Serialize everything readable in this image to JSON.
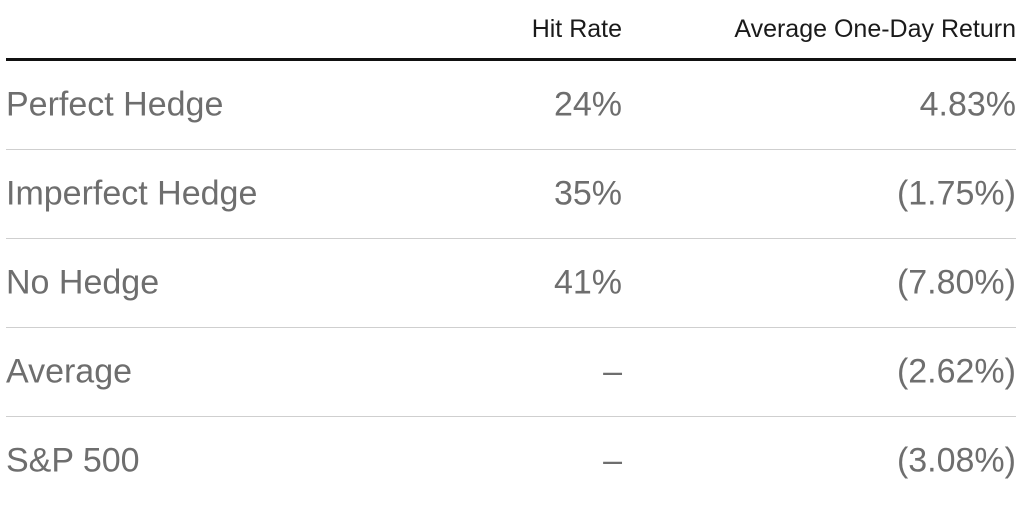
{
  "table": {
    "headers": {
      "hit_rate": "Hit Rate",
      "avg_return": "Average One-Day Return"
    },
    "rows": [
      {
        "name": "Perfect Hedge",
        "hit_rate": "24%",
        "avg_return": "4.83%"
      },
      {
        "name": "Imperfect Hedge",
        "hit_rate": "35%",
        "avg_return": "(1.75%)"
      },
      {
        "name": "No Hedge",
        "hit_rate": "41%",
        "avg_return": "(7.80%)"
      },
      {
        "name": "Average",
        "hit_rate": "–",
        "avg_return": "(2.62%)"
      },
      {
        "name": "S&P 500",
        "hit_rate": "–",
        "avg_return": "(3.08%)"
      }
    ]
  },
  "colors": {
    "header_text": "#1a1a1a",
    "body_text": "#6e6e6e",
    "header_rule": "#111111",
    "row_rule": "#cfcfcf"
  }
}
